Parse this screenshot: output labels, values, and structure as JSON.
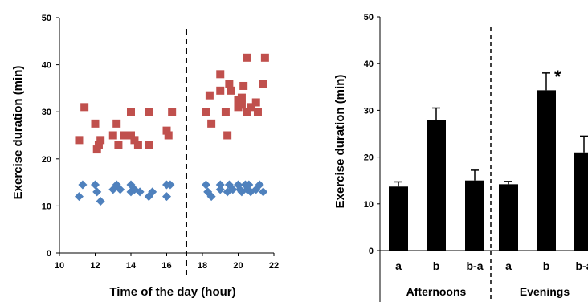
{
  "chart_data": [
    {
      "type": "scatter",
      "xlabel": "Time of the day (hour)",
      "ylabel": "Exercise duration (min)",
      "xlim": [
        10,
        22
      ],
      "ylim": [
        0,
        50
      ],
      "xticks": [
        "10",
        "12",
        "14",
        "16",
        "18",
        "20",
        "22"
      ],
      "yticks": [
        "0",
        "10",
        "20",
        "30",
        "40",
        "50"
      ],
      "divider_x": 17.1,
      "legend": "none",
      "grid": false,
      "series": [
        {
          "marker": "square",
          "color": "#c0504d",
          "points": [
            [
              11.1,
              24
            ],
            [
              11.4,
              31
            ],
            [
              12.0,
              27.5
            ],
            [
              12.1,
              22
            ],
            [
              12.2,
              23
            ],
            [
              12.3,
              24
            ],
            [
              13.0,
              25
            ],
            [
              13.2,
              27.5
            ],
            [
              13.3,
              23
            ],
            [
              13.6,
              25
            ],
            [
              14.0,
              30
            ],
            [
              14.0,
              25
            ],
            [
              14.2,
              24
            ],
            [
              14.4,
              23
            ],
            [
              15.0,
              23
            ],
            [
              15.0,
              30
            ],
            [
              16.0,
              26
            ],
            [
              16.1,
              25
            ],
            [
              16.3,
              30
            ],
            [
              18.2,
              30
            ],
            [
              18.4,
              33.5
            ],
            [
              18.5,
              27.5
            ],
            [
              19.0,
              38
            ],
            [
              19.0,
              34.5
            ],
            [
              19.3,
              30
            ],
            [
              19.4,
              25
            ],
            [
              19.5,
              36
            ],
            [
              19.6,
              34.5
            ],
            [
              20.0,
              31
            ],
            [
              20.0,
              32.5
            ],
            [
              20.2,
              31.5
            ],
            [
              20.2,
              33
            ],
            [
              20.3,
              35.5
            ],
            [
              20.5,
              41.5
            ],
            [
              20.5,
              30
            ],
            [
              20.7,
              31
            ],
            [
              21.0,
              32
            ],
            [
              21.1,
              30
            ],
            [
              21.4,
              36
            ],
            [
              21.5,
              41.5
            ]
          ]
        },
        {
          "marker": "diamond",
          "color": "#4f81bd",
          "points": [
            [
              11.1,
              12
            ],
            [
              11.3,
              14.5
            ],
            [
              12.0,
              14.5
            ],
            [
              12.1,
              13
            ],
            [
              12.3,
              11
            ],
            [
              13.0,
              13.5
            ],
            [
              13.2,
              14.5
            ],
            [
              13.4,
              13.5
            ],
            [
              14.0,
              14.5
            ],
            [
              14.0,
              13
            ],
            [
              14.2,
              13.5
            ],
            [
              14.5,
              13
            ],
            [
              15.0,
              12
            ],
            [
              15.2,
              13
            ],
            [
              16.0,
              12
            ],
            [
              16.0,
              14.5
            ],
            [
              16.2,
              14.5
            ],
            [
              18.2,
              14.5
            ],
            [
              18.3,
              13
            ],
            [
              18.5,
              12
            ],
            [
              19.0,
              13.5
            ],
            [
              19.0,
              14.5
            ],
            [
              19.4,
              13
            ],
            [
              19.5,
              14.5
            ],
            [
              19.7,
              13.5
            ],
            [
              20.0,
              14.5
            ],
            [
              20.1,
              13.5
            ],
            [
              20.2,
              13
            ],
            [
              20.4,
              14.5
            ],
            [
              20.5,
              13.5
            ],
            [
              20.6,
              14.5
            ],
            [
              20.7,
              13
            ],
            [
              21.0,
              13.5
            ],
            [
              21.2,
              14.5
            ],
            [
              21.4,
              13
            ]
          ]
        }
      ]
    },
    {
      "type": "bar",
      "ylabel": "Exercise duration (min)",
      "ylim": [
        0,
        50
      ],
      "yticks": [
        "0",
        "10",
        "20",
        "30",
        "40",
        "50"
      ],
      "groups": [
        {
          "label": "Afternoons",
          "categories": [
            "a",
            "b",
            "b-a"
          ]
        },
        {
          "label": "Evenings",
          "categories": [
            "a",
            "b",
            "b-a"
          ]
        }
      ],
      "values": [
        13.7,
        28,
        15,
        14.2,
        34.3,
        21
      ],
      "errors": [
        1,
        2.5,
        2.2,
        0.6,
        3.7,
        3.5
      ],
      "annotations": [
        "",
        "",
        "",
        "",
        "*",
        "*"
      ],
      "bar_color": "#000000",
      "legend": "none",
      "grid": false
    }
  ]
}
